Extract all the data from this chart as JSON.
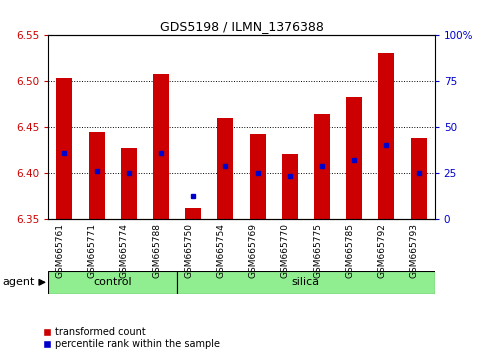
{
  "title": "GDS5198 / ILMN_1376388",
  "samples": [
    "GSM665761",
    "GSM665771",
    "GSM665774",
    "GSM665788",
    "GSM665750",
    "GSM665754",
    "GSM665769",
    "GSM665770",
    "GSM665775",
    "GSM665785",
    "GSM665792",
    "GSM665793"
  ],
  "groups": [
    "control",
    "control",
    "control",
    "control",
    "silica",
    "silica",
    "silica",
    "silica",
    "silica",
    "silica",
    "silica",
    "silica"
  ],
  "red_top": [
    6.504,
    6.445,
    6.428,
    6.508,
    6.362,
    6.46,
    6.443,
    6.421,
    6.465,
    6.483,
    6.531,
    6.438
  ],
  "red_bottom": [
    6.35,
    6.35,
    6.35,
    6.35,
    6.35,
    6.35,
    6.35,
    6.35,
    6.35,
    6.35,
    6.35,
    6.35
  ],
  "blue_y": [
    6.422,
    6.403,
    6.4,
    6.422,
    6.375,
    6.408,
    6.401,
    6.397,
    6.408,
    6.415,
    6.431,
    6.4
  ],
  "ylim": [
    6.35,
    6.55
  ],
  "yticks": [
    6.35,
    6.4,
    6.45,
    6.5,
    6.55
  ],
  "right_yticks": [
    0,
    25,
    50,
    75,
    100
  ],
  "bar_color": "#cc0000",
  "dot_color": "#0000cc",
  "bg_color": "#ffffff",
  "control_color": "#90EE90",
  "silica_color": "#90EE90",
  "agent_label": "agent",
  "legend_red": "transformed count",
  "legend_blue": "percentile rank within the sample",
  "bar_width": 0.5
}
